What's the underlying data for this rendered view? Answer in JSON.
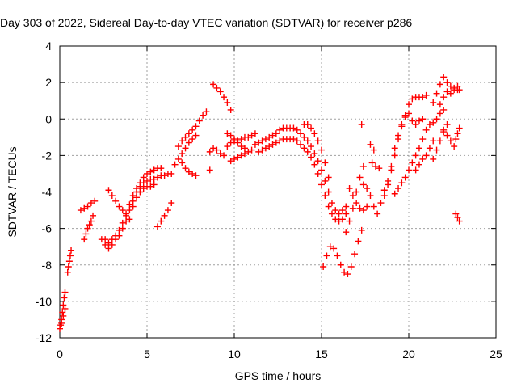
{
  "chart_data": {
    "type": "scatter",
    "title": "Day 303 of 2022, Sidereal Day-to-day VTEC variation (SDTVAR) for receiver p286",
    "xlabel": "GPS time / hours",
    "ylabel": "SDTVAR / TECUs",
    "xlim": [
      0,
      25
    ],
    "ylim": [
      -12,
      4
    ],
    "x_ticks": [
      0,
      5,
      10,
      15,
      20,
      25
    ],
    "y_ticks": [
      -12,
      -10,
      -8,
      -6,
      -4,
      -2,
      0,
      2,
      4
    ],
    "x_tick_labels": [
      "0",
      "5",
      "10",
      "15",
      "20",
      "25"
    ],
    "y_tick_labels": [
      "-12",
      "-10",
      "-8",
      "-6",
      "-4",
      "-2",
      "0",
      "2",
      "4"
    ],
    "grid": true,
    "marker": "+",
    "color": "#ff0000",
    "series": [
      {
        "points": [
          [
            0.0,
            -11.5
          ],
          [
            0.05,
            -11.3
          ],
          [
            0.1,
            -11.0
          ],
          [
            0.15,
            -10.6
          ],
          [
            0.2,
            -10.2
          ],
          [
            0.25,
            -9.8
          ],
          [
            0.3,
            -9.5
          ],
          [
            0.1,
            -11.2
          ],
          [
            0.2,
            -10.8
          ],
          [
            0.3,
            -10.4
          ],
          [
            0.45,
            -8.4
          ],
          [
            0.5,
            -8.1
          ],
          [
            0.55,
            -7.8
          ],
          [
            0.6,
            -7.5
          ],
          [
            0.65,
            -7.2
          ],
          [
            1.2,
            -5.0
          ],
          [
            1.4,
            -4.9
          ],
          [
            1.6,
            -4.8
          ],
          [
            1.8,
            -4.6
          ],
          [
            2.0,
            -4.5
          ],
          [
            1.4,
            -6.6
          ],
          [
            1.5,
            -6.3
          ],
          [
            1.6,
            -6.0
          ],
          [
            1.7,
            -5.8
          ],
          [
            1.8,
            -5.6
          ],
          [
            1.9,
            -5.3
          ],
          [
            2.4,
            -6.6
          ],
          [
            2.6,
            -6.9
          ],
          [
            2.8,
            -7.1
          ],
          [
            3.0,
            -6.9
          ],
          [
            3.2,
            -6.6
          ],
          [
            3.4,
            -6.4
          ],
          [
            3.6,
            -6.0
          ],
          [
            3.8,
            -5.6
          ],
          [
            4.0,
            -5.0
          ],
          [
            4.2,
            -4.5
          ],
          [
            4.4,
            -4.0
          ],
          [
            4.6,
            -3.7
          ],
          [
            4.8,
            -3.5
          ],
          [
            5.0,
            -3.4
          ],
          [
            5.2,
            -3.3
          ],
          [
            5.4,
            -3.3
          ],
          [
            5.6,
            -3.2
          ],
          [
            5.8,
            -3.1
          ],
          [
            6.0,
            -3.1
          ],
          [
            6.2,
            -3.0
          ],
          [
            6.4,
            -3.0
          ],
          [
            2.6,
            -6.6
          ],
          [
            2.8,
            -6.8
          ],
          [
            3.0,
            -6.6
          ],
          [
            3.2,
            -6.4
          ],
          [
            3.4,
            -6.1
          ],
          [
            3.6,
            -5.7
          ],
          [
            3.8,
            -5.2
          ],
          [
            4.0,
            -4.7
          ],
          [
            4.2,
            -4.2
          ],
          [
            4.4,
            -3.8
          ],
          [
            4.6,
            -3.5
          ],
          [
            4.8,
            -3.2
          ],
          [
            5.0,
            -3.0
          ],
          [
            5.2,
            -2.9
          ],
          [
            5.4,
            -2.8
          ],
          [
            5.6,
            -2.7
          ],
          [
            5.8,
            -2.7
          ],
          [
            2.8,
            -3.9
          ],
          [
            3.0,
            -4.2
          ],
          [
            3.2,
            -4.5
          ],
          [
            3.4,
            -4.8
          ],
          [
            3.6,
            -5.0
          ],
          [
            3.8,
            -5.3
          ],
          [
            4.0,
            -5.5
          ],
          [
            4.2,
            -4.8
          ],
          [
            4.4,
            -4.3
          ],
          [
            4.6,
            -4.0
          ],
          [
            4.8,
            -3.8
          ],
          [
            5.0,
            -3.7
          ],
          [
            5.2,
            -3.7
          ],
          [
            5.4,
            -3.6
          ],
          [
            5.6,
            -5.9
          ],
          [
            5.8,
            -5.6
          ],
          [
            6.0,
            -5.3
          ],
          [
            6.2,
            -5.0
          ],
          [
            6.4,
            -4.6
          ],
          [
            6.8,
            -1.5
          ],
          [
            7.0,
            -1.2
          ],
          [
            7.2,
            -1.0
          ],
          [
            7.4,
            -0.8
          ],
          [
            7.6,
            -0.6
          ],
          [
            7.8,
            -0.4
          ],
          [
            8.0,
            -0.1
          ],
          [
            8.2,
            0.2
          ],
          [
            8.4,
            0.4
          ],
          [
            6.6,
            -2.5
          ],
          [
            6.8,
            -2.2
          ],
          [
            7.0,
            -1.9
          ],
          [
            7.2,
            -1.6
          ],
          [
            7.4,
            -1.3
          ],
          [
            7.6,
            -1.1
          ],
          [
            7.8,
            -0.9
          ],
          [
            7.0,
            -2.4
          ],
          [
            7.2,
            -2.7
          ],
          [
            7.4,
            -2.9
          ],
          [
            7.6,
            -3.0
          ],
          [
            7.8,
            -3.1
          ],
          [
            8.6,
            -2.8
          ],
          [
            8.8,
            1.9
          ],
          [
            9.0,
            1.7
          ],
          [
            9.2,
            1.5
          ],
          [
            9.4,
            1.2
          ],
          [
            9.6,
            0.9
          ],
          [
            9.8,
            0.5
          ],
          [
            8.6,
            -1.8
          ],
          [
            8.8,
            -1.6
          ],
          [
            9.0,
            -1.7
          ],
          [
            9.2,
            -1.9
          ],
          [
            9.4,
            -2.0
          ],
          [
            9.6,
            -1.5
          ],
          [
            9.8,
            -1.3
          ],
          [
            10.0,
            -1.2
          ],
          [
            10.2,
            -1.2
          ],
          [
            10.4,
            -1.1
          ],
          [
            10.6,
            -1.0
          ],
          [
            10.8,
            -1.0
          ],
          [
            11.0,
            -0.9
          ],
          [
            11.2,
            -0.8
          ],
          [
            9.8,
            -2.3
          ],
          [
            10.0,
            -2.2
          ],
          [
            10.2,
            -2.1
          ],
          [
            10.4,
            -2.0
          ],
          [
            10.6,
            -1.9
          ],
          [
            10.8,
            -1.8
          ],
          [
            11.0,
            -1.7
          ],
          [
            9.6,
            -0.8
          ],
          [
            9.8,
            -0.9
          ],
          [
            10.0,
            -1.1
          ],
          [
            10.2,
            -1.3
          ],
          [
            10.4,
            -1.5
          ],
          [
            10.6,
            -1.6
          ],
          [
            11.2,
            -1.4
          ],
          [
            11.4,
            -1.3
          ],
          [
            11.6,
            -1.2
          ],
          [
            11.8,
            -1.1
          ],
          [
            12.0,
            -1.0
          ],
          [
            12.2,
            -0.9
          ],
          [
            12.4,
            -0.8
          ],
          [
            12.6,
            -0.6
          ],
          [
            12.8,
            -0.5
          ],
          [
            13.0,
            -0.5
          ],
          [
            13.2,
            -0.5
          ],
          [
            13.4,
            -0.5
          ],
          [
            13.6,
            -0.6
          ],
          [
            13.8,
            -0.8
          ],
          [
            14.0,
            -1.0
          ],
          [
            14.2,
            -1.2
          ],
          [
            14.4,
            -1.5
          ],
          [
            14.6,
            -1.9
          ],
          [
            14.8,
            -2.3
          ],
          [
            15.0,
            -2.8
          ],
          [
            15.2,
            -3.4
          ],
          [
            15.4,
            -4.0
          ],
          [
            15.6,
            -4.6
          ],
          [
            15.8,
            -5.0
          ],
          [
            16.0,
            -5.2
          ],
          [
            16.2,
            -5.0
          ],
          [
            16.4,
            -4.8
          ],
          [
            11.4,
            -1.8
          ],
          [
            11.6,
            -1.7
          ],
          [
            11.8,
            -1.6
          ],
          [
            12.0,
            -1.5
          ],
          [
            12.2,
            -1.4
          ],
          [
            12.4,
            -1.3
          ],
          [
            12.6,
            -1.2
          ],
          [
            12.8,
            -1.1
          ],
          [
            13.0,
            -1.1
          ],
          [
            13.2,
            -1.1
          ],
          [
            13.4,
            -1.1
          ],
          [
            13.6,
            -1.2
          ],
          [
            13.8,
            -1.4
          ],
          [
            14.0,
            -1.6
          ],
          [
            14.2,
            -1.8
          ],
          [
            14.4,
            -2.1
          ],
          [
            14.6,
            -2.5
          ],
          [
            14.8,
            -3.0
          ],
          [
            15.0,
            -3.6
          ],
          [
            15.2,
            -4.2
          ],
          [
            15.4,
            -4.8
          ],
          [
            15.6,
            -5.2
          ],
          [
            15.8,
            -5.5
          ],
          [
            16.0,
            -5.6
          ],
          [
            16.2,
            -5.5
          ],
          [
            16.4,
            -5.2
          ],
          [
            14.0,
            -0.3
          ],
          [
            14.2,
            -0.3
          ],
          [
            14.4,
            -0.5
          ],
          [
            14.6,
            -0.8
          ],
          [
            14.8,
            -1.2
          ],
          [
            15.0,
            -1.7
          ],
          [
            15.2,
            -2.4
          ],
          [
            15.4,
            -3.2
          ],
          [
            15.1,
            -8.1
          ],
          [
            15.3,
            -7.5
          ],
          [
            15.5,
            -7.0
          ],
          [
            15.7,
            -7.1
          ],
          [
            15.9,
            -7.5
          ],
          [
            16.1,
            -8.0
          ],
          [
            16.3,
            -8.4
          ],
          [
            16.5,
            -8.5
          ],
          [
            16.7,
            -8.1
          ],
          [
            16.9,
            -7.4
          ],
          [
            17.1,
            -6.7
          ],
          [
            17.3,
            -6.1
          ],
          [
            16.4,
            -6.2
          ],
          [
            16.6,
            -5.6
          ],
          [
            16.8,
            -4.9
          ],
          [
            17.0,
            -4.0
          ],
          [
            17.2,
            -3.2
          ],
          [
            17.4,
            -2.6
          ],
          [
            16.6,
            -3.8
          ],
          [
            16.8,
            -4.2
          ],
          [
            17.0,
            -4.6
          ],
          [
            17.2,
            -4.9
          ],
          [
            17.4,
            -5.0
          ],
          [
            17.6,
            -4.8
          ],
          [
            17.3,
            -0.3
          ],
          [
            17.4,
            -3.6
          ],
          [
            17.6,
            -3.8
          ],
          [
            17.8,
            -4.2
          ],
          [
            18.0,
            -4.8
          ],
          [
            18.2,
            -5.2
          ],
          [
            17.9,
            -2.4
          ],
          [
            18.1,
            -2.6
          ],
          [
            18.3,
            -2.7
          ],
          [
            17.8,
            -1.4
          ],
          [
            18.0,
            -1.7
          ],
          [
            18.4,
            -4.6
          ],
          [
            18.6,
            -4.2
          ],
          [
            18.8,
            -3.6
          ],
          [
            19.0,
            -2.8
          ],
          [
            19.2,
            -2.0
          ],
          [
            19.4,
            -1.1
          ],
          [
            19.6,
            -0.4
          ],
          [
            19.8,
            0.2
          ],
          [
            20.0,
            0.8
          ],
          [
            20.2,
            1.1
          ],
          [
            20.4,
            1.2
          ],
          [
            20.6,
            1.2
          ],
          [
            20.8,
            1.2
          ],
          [
            21.0,
            1.3
          ],
          [
            18.6,
            -3.9
          ],
          [
            18.8,
            -3.4
          ],
          [
            19.0,
            -2.6
          ],
          [
            19.2,
            -1.6
          ],
          [
            19.4,
            -0.9
          ],
          [
            19.6,
            -0.3
          ],
          [
            19.8,
            0.1
          ],
          [
            20.0,
            0.3
          ],
          [
            20.2,
            -0.1
          ],
          [
            20.4,
            -0.3
          ],
          [
            20.6,
            -0.1
          ],
          [
            20.8,
            0.0
          ],
          [
            19.2,
            -4.1
          ],
          [
            19.4,
            -3.8
          ],
          [
            19.6,
            -3.5
          ],
          [
            19.8,
            -3.2
          ],
          [
            20.0,
            -2.8
          ],
          [
            20.2,
            -2.4
          ],
          [
            20.4,
            -2.0
          ],
          [
            20.6,
            -1.6
          ],
          [
            20.8,
            -1.1
          ],
          [
            21.0,
            -0.6
          ],
          [
            21.2,
            -0.3
          ],
          [
            21.4,
            -0.2
          ],
          [
            21.6,
            0.0
          ],
          [
            21.8,
            0.3
          ],
          [
            22.0,
            0.5
          ],
          [
            20.4,
            -2.8
          ],
          [
            20.6,
            -2.5
          ],
          [
            20.8,
            -2.2
          ],
          [
            21.0,
            -2.0
          ],
          [
            21.2,
            -1.6
          ],
          [
            21.4,
            -1.2
          ],
          [
            21.4,
            0.9
          ],
          [
            21.6,
            1.4
          ],
          [
            21.8,
            1.9
          ],
          [
            22.0,
            2.3
          ],
          [
            22.2,
            2.0
          ],
          [
            22.4,
            1.8
          ],
          [
            22.6,
            1.7
          ],
          [
            22.8,
            1.6
          ],
          [
            22.9,
            1.6
          ],
          [
            21.8,
            0.8
          ],
          [
            22.0,
            1.2
          ],
          [
            22.2,
            1.5
          ],
          [
            22.4,
            1.4
          ],
          [
            22.6,
            1.6
          ],
          [
            22.8,
            1.8
          ],
          [
            22.0,
            -0.6
          ],
          [
            22.2,
            -0.9
          ],
          [
            22.4,
            -1.2
          ],
          [
            22.6,
            -1.5
          ],
          [
            22.7,
            -1.1
          ],
          [
            22.8,
            -0.8
          ],
          [
            22.9,
            -0.5
          ],
          [
            21.4,
            -2.2
          ],
          [
            21.6,
            -1.7
          ],
          [
            21.8,
            -1.2
          ],
          [
            22.0,
            -0.7
          ],
          [
            22.2,
            -0.3
          ],
          [
            22.7,
            -5.2
          ],
          [
            22.8,
            -5.4
          ],
          [
            22.9,
            -5.6
          ]
        ]
      }
    ]
  }
}
